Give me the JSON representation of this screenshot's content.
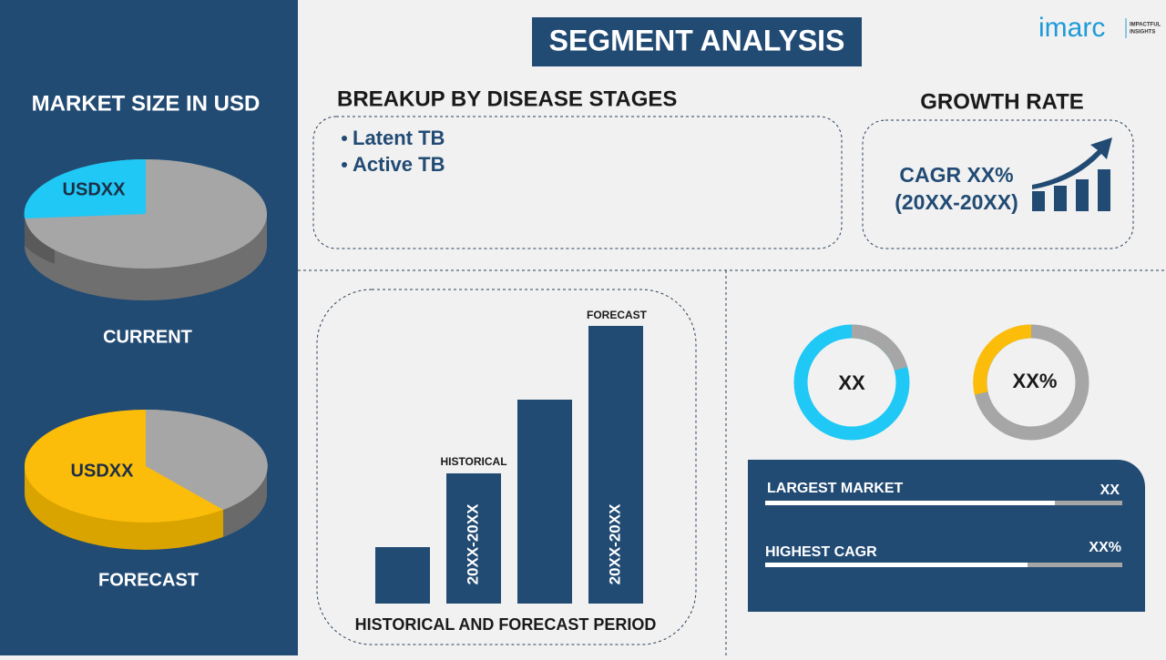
{
  "header": {
    "title": "SEGMENT ANALYSIS",
    "logo": "imarc",
    "logo_tagline_1": "IMPACTFUL",
    "logo_tagline_2": "INSIGHTS"
  },
  "market_size": {
    "title": "MARKET SIZE IN USD",
    "current_value": "USDXX",
    "current_label": "CURRENT",
    "forecast_value": "USDXX",
    "forecast_label": "FORECAST"
  },
  "breakup": {
    "title": "BREAKUP BY DISEASE STAGES",
    "items": [
      "Latent TB",
      "Active TB"
    ]
  },
  "growth": {
    "title": "GROWTH RATE",
    "line_1": "CAGR XX%",
    "line_2": "(20XX-20XX)"
  },
  "period_chart": {
    "forecast_label": "FORECAST",
    "historical_label": "HISTORICAL",
    "historical_period": "20XX-20XX",
    "forecast_period": "20XX-20XX",
    "caption": "HISTORICAL AND FORECAST PERIOD"
  },
  "donuts": {
    "first": "XX",
    "second": "XX%"
  },
  "summary": {
    "largest_market_label": "LARGEST MARKET",
    "largest_market_value": "XX",
    "highest_cagr_label": "HIGHEST CAGR",
    "highest_cagr_value": "XX%"
  }
}
